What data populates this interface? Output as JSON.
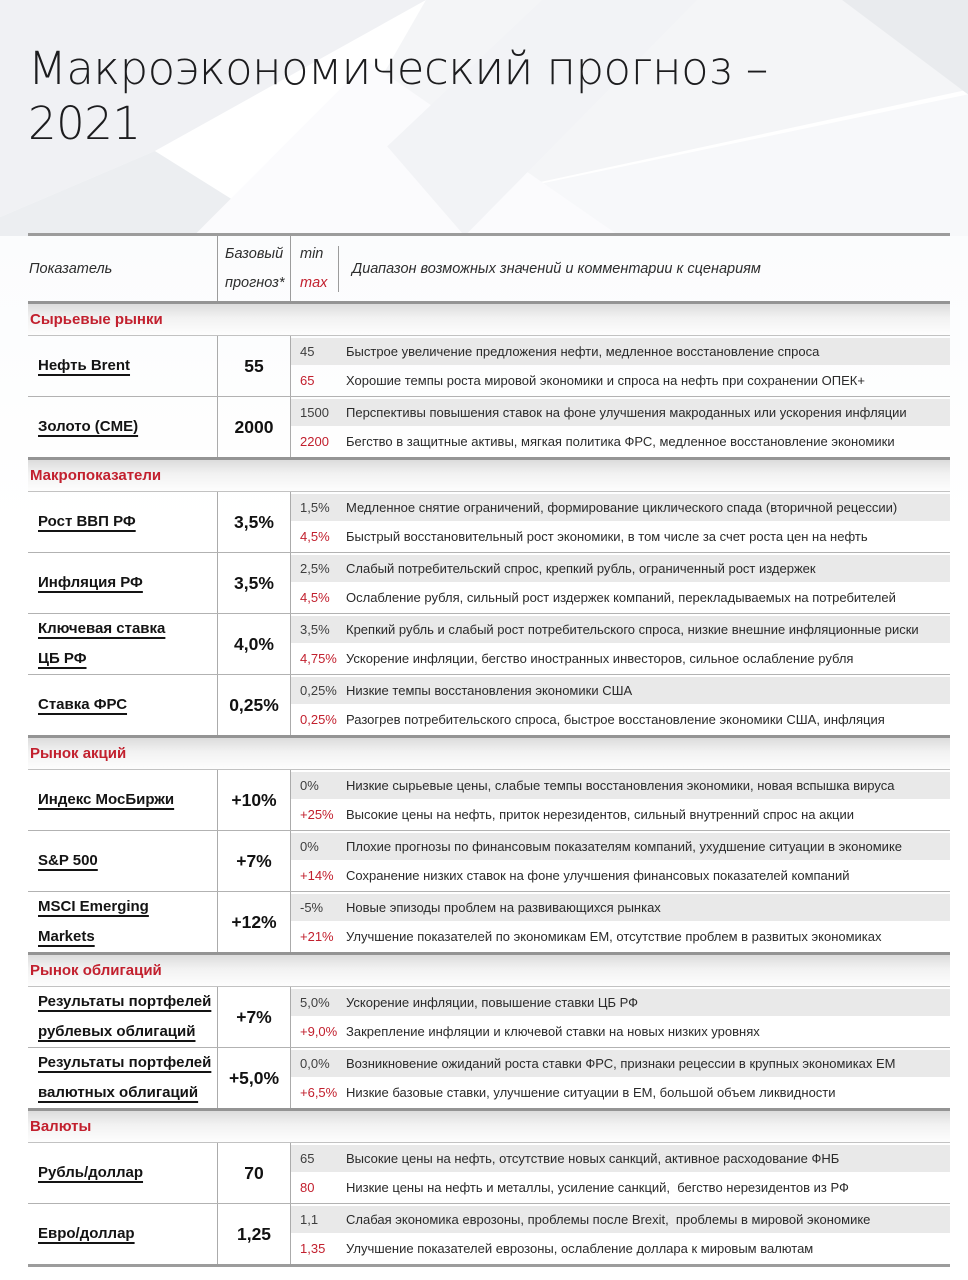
{
  "page": {
    "title_line1": "Макроэкономический прогноз –",
    "title_line2": "2021"
  },
  "colors": {
    "accent_red": "#c2202e",
    "subrow_gray": "#e9e9e9"
  },
  "table": {
    "header": {
      "indicator": "Показатель",
      "base_line1": "Базовый",
      "base_line2": "прогноз*",
      "min": "min",
      "max": "max",
      "comment": "Диапазон возможных значений и комментарии к сценариям"
    },
    "sections": [
      {
        "title": "Сырьевые рынки",
        "rows": [
          {
            "name": "Нефть Brent",
            "base": "55",
            "min_value": "45",
            "min_text": "Быстрое увеличение предложения нефти, медленное восстановление спроса",
            "max_value": "65",
            "max_text": "Хорошие темпы роста мировой экономики и спроса на нефть при сохранении ОПЕК+"
          },
          {
            "name": "Золото (CME)",
            "base": "2000",
            "min_value": "1500",
            "min_text": "Перспективы повышения ставок на фоне улучшения макроданных или ускорения инфляции",
            "max_value": "2200",
            "max_text": "Бегство в защитные активы, мягкая политика ФРС, медленное восстановление экономики"
          }
        ]
      },
      {
        "title": "Макропоказатели",
        "rows": [
          {
            "name": "Рост ВВП РФ",
            "base": "3,5%",
            "min_value": "1,5%",
            "min_text": "Медленное снятие ограничений, формирование циклического спада (вторичной рецессии)",
            "max_value": "4,5%",
            "max_text": "Быстрый восстановительный рост экономики, в том числе за счет роста цен на нефть"
          },
          {
            "name": "Инфляция РФ",
            "base": "3,5%",
            "min_value": "2,5%",
            "min_text": "Слабый потребительский спрос, крепкий рубль, ограниченный рост издержек",
            "max_value": "4,5%",
            "max_text": "Ослабление рубля, сильный рост издержек компаний, перекладываемых на потребителей"
          },
          {
            "name": "Ключевая ставка\nЦБ РФ",
            "base": "4,0%",
            "min_value": "3,5%",
            "min_text": "Крепкий рубль и слабый рост потребительского спроса, низкие внешние инфляционные риски",
            "max_value": "4,75%",
            "max_text": "Ускорение инфляции, бегство иностранных инвесторов, сильное ослабление рубля"
          },
          {
            "name": "Ставка ФРС",
            "base": "0,25%",
            "min_value": "0,25%",
            "min_text": "Низкие темпы восстановления экономики США",
            "max_value": "0,25%",
            "max_text": "Разогрев потребительского спроса, быстрое восстановление экономики США, инфляция"
          }
        ]
      },
      {
        "title": "Рынок акций",
        "rows": [
          {
            "name": "Индекс МосБиржи",
            "base": "+10%",
            "min_value": "0%",
            "min_text": "Низкие сырьевые цены, слабые темпы восстановления экономики, новая вспышка вируса",
            "max_value": "+25%",
            "max_text": "Высокие цены на нефть, приток нерезидентов, сильный внутренний спрос на акции"
          },
          {
            "name": "S&P 500",
            "base": "+7%",
            "min_value": "0%",
            "min_text": "Плохие прогнозы по финансовым показателям компаний, ухудшение ситуации в экономике",
            "max_value": "+14%",
            "max_text": "Сохранение низких ставок на фоне улучшения финансовых показателей компаний"
          },
          {
            "name": "MSCI Emerging\nMarkets",
            "base": "+12%",
            "min_value": "-5%",
            "min_text": "Новые эпизоды проблем на развивающихся рынках",
            "max_value": "+21%",
            "max_text": "Улучшение показателей по экономикам EM, отсутствие проблем в развитых экономиках"
          }
        ]
      },
      {
        "title": "Рынок облигаций",
        "rows": [
          {
            "name": "Результаты портфелей\nрублевых облигаций",
            "base": "+7%",
            "min_value": "5,0%",
            "min_text": "Ускорение инфляции, повышение ставки ЦБ РФ",
            "max_value": "+9,0%",
            "max_text": "Закрепление инфляции и ключевой ставки на новых низких уровнях"
          },
          {
            "name": "Результаты портфелей\nвалютных облигаций",
            "base": "+5,0%",
            "min_value": "0,0%",
            "min_text": "Возникновение ожиданий роста ставки ФРС, признаки рецессии в крупных экономиках ЕМ",
            "max_value": "+6,5%",
            "max_text": "Низкие базовые ставки, улучшение ситуации в ЕМ, большой объем ликвидности"
          }
        ]
      },
      {
        "title": "Валюты",
        "rows": [
          {
            "name": "Рубль/доллар",
            "base": "70",
            "min_value": "65",
            "min_text": "Высокие цены на нефть, отсутствие новых санкций, активное расходование ФНБ",
            "max_value": "80",
            "max_text": "Низкие цены на нефть и металлы, усиление санкций,  бегство нерезидентов из РФ"
          },
          {
            "name": "Евро/доллар",
            "base": "1,25",
            "min_value": "1,1",
            "min_text": "Слабая экономика еврозоны, проблемы после Brexit,  проблемы в мировой экономике",
            "max_value": "1,35",
            "max_text": "Улучшение показателей еврозоны, ослабление доллара к мировым валютам"
          }
        ]
      }
    ]
  }
}
